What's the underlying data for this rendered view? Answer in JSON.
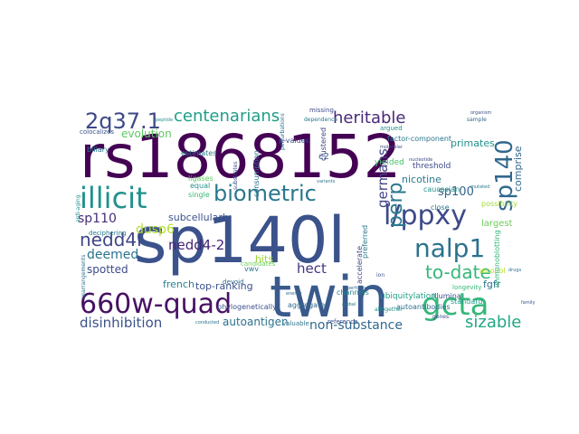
{
  "words": [
    {
      "text": "rs1868152",
      "color": "#440154"
    },
    {
      "text": "sp140l",
      "color": "#3b528b"
    },
    {
      "text": "twin",
      "color": "#3a5a8c"
    },
    {
      "text": "660w-quad",
      "color": "#471164"
    },
    {
      "text": "illicit",
      "color": "#21918c"
    },
    {
      "text": "biometric",
      "color": "#2a788e"
    },
    {
      "text": "l/ppxy",
      "color": "#3e4a89"
    },
    {
      "text": "gcta",
      "color": "#35b779"
    },
    {
      "text": "nalp1",
      "color": "#2c728e"
    },
    {
      "text": "sp140",
      "color": "#31688e"
    },
    {
      "text": "2q37.1",
      "color": "#3e4989"
    },
    {
      "text": "centenarians",
      "color": "#1f9e89"
    },
    {
      "text": "heritable",
      "color": "#482878"
    },
    {
      "text": "nedd4l",
      "color": "#404688"
    },
    {
      "text": "perp",
      "color": "#2a788e"
    },
    {
      "text": "to-date",
      "color": "#35b779"
    },
    {
      "text": "sizable",
      "color": "#22a884"
    },
    {
      "text": "disinhibition",
      "color": "#3b528b"
    },
    {
      "text": "non-substance",
      "color": "#31688e"
    },
    {
      "text": "autoantigen",
      "color": "#2c728e"
    },
    {
      "text": "nedd4-2",
      "color": "#482475"
    },
    {
      "text": "germans",
      "color": "#414487"
    },
    {
      "text": "hect",
      "color": "#46337e"
    },
    {
      "text": "dusp6",
      "color": "#b5de2b"
    },
    {
      "text": "deemed",
      "color": "#2c728e"
    },
    {
      "text": "sp110",
      "color": "#472d7b"
    },
    {
      "text": "sp100",
      "color": "#33638d"
    },
    {
      "text": "evolution",
      "color": "#5ec962"
    },
    {
      "text": "subcellularly",
      "color": "#3b528b"
    },
    {
      "text": "primates",
      "color": "#21918c"
    },
    {
      "text": "nicotine",
      "color": "#2a788e"
    },
    {
      "text": "comprise",
      "color": "#31688e"
    },
    {
      "text": "spotted",
      "color": "#3e4a89"
    },
    {
      "text": "french",
      "color": "#26828e"
    },
    {
      "text": "top-ranking",
      "color": "#3b528b"
    },
    {
      "text": "fgfr",
      "color": "#2c728e"
    },
    {
      "text": "hits",
      "color": "#a0da39"
    },
    {
      "text": "largest",
      "color": "#6ccd5a"
    },
    {
      "text": "ubiquitylation",
      "color": "#1f9e89"
    },
    {
      "text": "threshold",
      "color": "#3e4a89"
    },
    {
      "text": "c2",
      "color": "#355f8d"
    },
    {
      "text": "yielded",
      "color": "#4ac16d"
    },
    {
      "text": "estimates",
      "color": "#2a788e"
    },
    {
      "text": "ligases",
      "color": "#5ec962"
    },
    {
      "text": "single",
      "color": "#35b779"
    },
    {
      "text": "equal",
      "color": "#21918c"
    },
    {
      "text": "consumption",
      "color": "#2c728e"
    },
    {
      "text": "p-values",
      "color": "#3e4a89"
    },
    {
      "text": "caucasian",
      "color": "#21918c"
    },
    {
      "text": "close",
      "color": "#2a788e"
    },
    {
      "text": "aggregate",
      "color": "#31688e"
    },
    {
      "text": "phylogenetically",
      "color": "#3b528b"
    },
    {
      "text": "channels",
      "color": "#26828e"
    },
    {
      "text": "preferred",
      "color": "#2a788e"
    },
    {
      "text": "illumina",
      "color": "#3e4a89"
    },
    {
      "text": "autoantibodies",
      "color": "#2c728e"
    },
    {
      "text": "alcohol",
      "color": "#b5de2b"
    },
    {
      "text": "standard",
      "color": "#1f9e89"
    },
    {
      "text": "factor-component",
      "color": "#2a788e"
    },
    {
      "text": "accelerate",
      "color": "#414487"
    },
    {
      "text": "reference",
      "color": "#3b528b"
    },
    {
      "text": "valuable",
      "color": "#2c728e"
    },
    {
      "text": "devoid",
      "color": "#31688e"
    },
    {
      "text": "deciphering",
      "color": "#2a788e"
    },
    {
      "text": "biliary",
      "color": "#2a788e"
    },
    {
      "text": "colocalizes",
      "color": "#3b528b"
    },
    {
      "text": "anti-aging",
      "color": "#21918c"
    },
    {
      "text": "rearrangements",
      "color": "#2c728e"
    },
    {
      "text": "immunoblotting",
      "color": "#35b779"
    },
    {
      "text": "missing",
      "color": "#3e4a89"
    },
    {
      "text": "dependence",
      "color": "#2a788e"
    },
    {
      "text": "argued",
      "color": "#21918c"
    },
    {
      "text": "organism",
      "color": "#3b528b"
    },
    {
      "text": "sample",
      "color": "#31688e"
    },
    {
      "text": "clustered",
      "color": "#414487"
    },
    {
      "text": "perturbations",
      "color": "#2c728e"
    },
    {
      "text": "candidates",
      "color": "#6ccd5a"
    },
    {
      "text": "substrates",
      "color": "#3b528b"
    },
    {
      "text": "variants",
      "color": "#2a788e"
    },
    {
      "text": "molecular",
      "color": "#3e4a89"
    },
    {
      "text": "possibility",
      "color": "#a0da39"
    },
    {
      "text": "drugs",
      "color": "#2c728e"
    },
    {
      "text": "family",
      "color": "#3b528b"
    },
    {
      "text": "global",
      "color": "#2a788e"
    },
    {
      "text": "genes",
      "color": "#3e4a89"
    },
    {
      "text": "altogether",
      "color": "#21918c"
    },
    {
      "text": "longevity",
      "color": "#35b779"
    },
    {
      "text": "energy",
      "color": "#31688e"
    },
    {
      "text": "conducted",
      "color": "#2c728e"
    },
    {
      "text": "vwv",
      "color": "#2a788e"
    },
    {
      "text": "ion",
      "color": "#3b528b"
    },
    {
      "text": "peptide",
      "color": "#21918c"
    },
    {
      "text": "nucleotide",
      "color": "#3e4a89"
    },
    {
      "text": "mutated",
      "color": "#2a788e"
    },
    {
      "text": "performed",
      "color": "#31688e"
    }
  ]
}
